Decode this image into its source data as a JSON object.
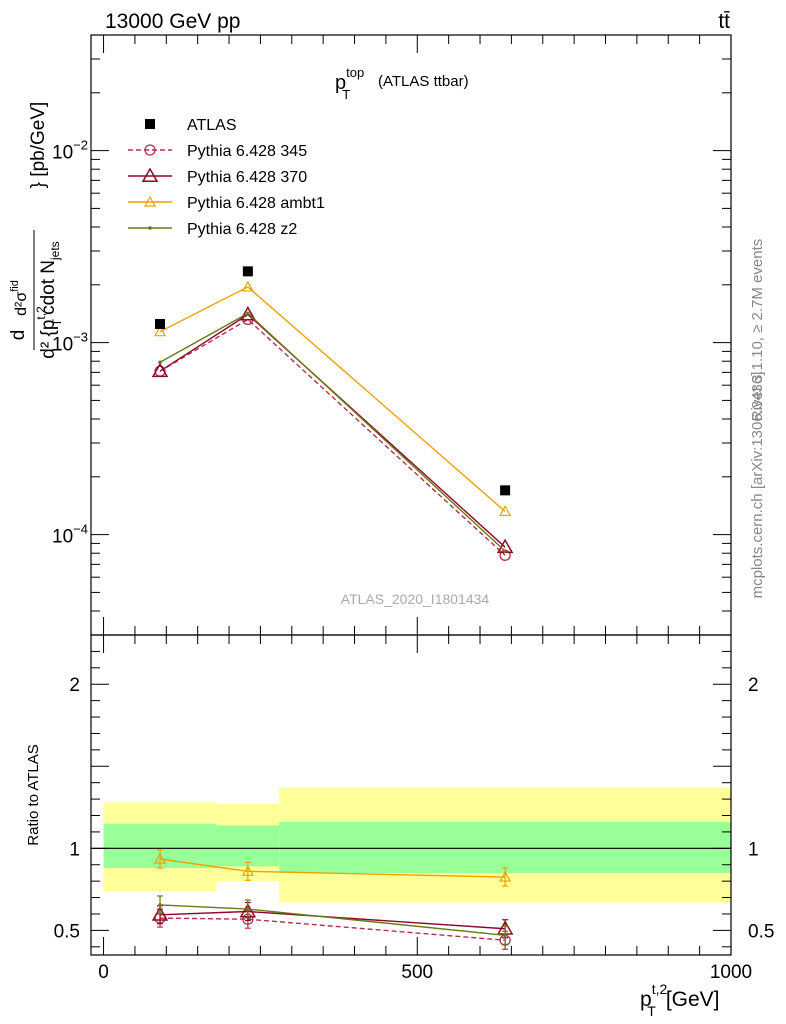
{
  "header": {
    "left": "13000 GeV pp",
    "right": "tt̄"
  },
  "side_labels": {
    "rivet": "Rivet 3.1.10, ≥ 2.7M events",
    "source": "mcplots.cern.ch [arXiv:1306.3436]"
  },
  "watermark": "ATLAS_2020_I1801434",
  "chart_data": {
    "type": "line",
    "title_main": "p",
    "title_sup": "top",
    "title_sub": "T",
    "title_rest": "(ATLAS ttbar)",
    "xlabel": "p",
    "xlabel_sup": "t,2",
    "xlabel_sub": "T",
    "xlabel_unit": "[GeV]",
    "ylabel_top": {
      "numerator": "d²σ",
      "numerator_sup": "fid",
      "denominator": "d² {p",
      "denominator_sup": "t,2",
      "denominator_sub": "T",
      "denominator_rest": "cdot N",
      "denominator_rest_sub": "jets",
      "unit": "} [pb/GeV]"
    },
    "ylabel_ratio": "Ratio to ATLAS",
    "xlim": [
      -20,
      1000
    ],
    "ylim_main": [
      3e-05,
      0.04
    ],
    "ylog_main": true,
    "ylim_ratio": [
      0.35,
      2.3
    ],
    "x_ticks": [
      0,
      500,
      1000
    ],
    "x_tick_labels": [
      "0",
      "500",
      "1000"
    ],
    "y_ticks_main_labels": [
      {
        "value": 0.0001,
        "mantissa": "10",
        "exp": "−4"
      },
      {
        "value": 0.001,
        "mantissa": "10",
        "exp": "−3"
      },
      {
        "value": 0.01,
        "mantissa": "10",
        "exp": "−2"
      }
    ],
    "y_ticks_ratio": [
      0.5,
      1,
      2
    ],
    "y_ticks_ratio_labels": [
      "0.5",
      "1",
      "2"
    ],
    "bins": [
      [
        0,
        180
      ],
      [
        180,
        280
      ],
      [
        280,
        1000
      ]
    ],
    "data": {
      "name": "ATLAS",
      "x": [
        90,
        230,
        640
      ],
      "y": [
        0.00125,
        0.00235,
        0.00017
      ]
    },
    "band_inner": [
      [
        0.88,
        1.15
      ],
      [
        0.89,
        1.14
      ],
      [
        0.85,
        1.16
      ]
    ],
    "band_outer": [
      [
        0.74,
        1.28
      ],
      [
        0.8,
        1.27
      ],
      [
        0.67,
        1.37
      ]
    ],
    "series": [
      {
        "name": "Pythia 6.428 345",
        "color": "#b03050",
        "marker": "circle",
        "dashed": true,
        "y": [
          0.00071,
          0.00132,
          7.8e-05
        ],
        "ratio": [
          0.575,
          0.568,
          0.44
        ]
      },
      {
        "name": "Pythia 6.428 370",
        "color": "#8b0a2a",
        "marker": "triangle",
        "dashed": false,
        "y": [
          0.00071,
          0.0014,
          8.6e-05
        ],
        "ratio": [
          0.595,
          0.615,
          0.51
        ]
      },
      {
        "name": "Pythia 6.428 ambt1",
        "color": "#f0a000",
        "marker": "triangle-small",
        "dashed": false,
        "y": [
          0.00114,
          0.00195,
          0.000132
        ],
        "ratio": [
          0.935,
          0.86,
          0.825
        ]
      },
      {
        "name": "Pythia 6.428 z2",
        "color": "#6b7a10",
        "marker": "dot",
        "dashed": false,
        "y": [
          0.00079,
          0.00142,
          8.2e-05
        ],
        "ratio": [
          0.655,
          0.63,
          0.47
        ]
      }
    ],
    "colors": {
      "band_inner": "#99ff99",
      "band_outer": "#ffff99",
      "data": "#000000"
    },
    "legend_position": "top-left",
    "grid": false
  }
}
